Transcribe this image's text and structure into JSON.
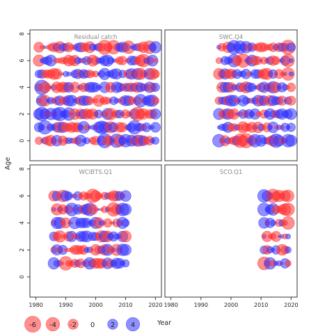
{
  "chart_data": {
    "type": "scatter",
    "subtype": "bubble-residuals",
    "xlabel": "Year",
    "ylabel": "Age",
    "xlim": [
      1978,
      2022
    ],
    "ylim": [
      -1.5,
      8.3
    ],
    "x_ticks": [
      1980,
      1990,
      2000,
      2010,
      2020
    ],
    "y_ticks": [
      0,
      2,
      4,
      6,
      8
    ],
    "colors": {
      "positive": "#3333ff",
      "negative": "#ff3333"
    },
    "legend": {
      "placement": "bottom",
      "title": "Year",
      "entries": [
        {
          "label": "-6",
          "value": -6
        },
        {
          "label": "-4",
          "value": -4
        },
        {
          "label": "-2",
          "value": -2
        },
        {
          "label": "0",
          "value": 0
        },
        {
          "label": "2",
          "value": 2
        },
        {
          "label": "4",
          "value": 4
        }
      ]
    },
    "panels": [
      {
        "title": "Residual catch",
        "years": [
          1981,
          2020
        ],
        "ages": [
          0,
          7
        ],
        "highlights": [
          {
            "year": 1982,
            "age": 4,
            "value": 4
          },
          {
            "year": 1982,
            "age": 2,
            "value": 3.5
          },
          {
            "year": 1983,
            "age": 1,
            "value": 3.5
          },
          {
            "year": 1988,
            "age": 2,
            "value": 3.5
          },
          {
            "year": 1991,
            "age": 2,
            "value": 3
          },
          {
            "year": 2003,
            "age": 0,
            "value": 4
          },
          {
            "year": 2003,
            "age": 7,
            "value": -4
          },
          {
            "year": 2007,
            "age": 0,
            "value": 3.5
          },
          {
            "year": 2010,
            "age": 0,
            "value": 3
          },
          {
            "year": 2013,
            "age": 1,
            "value": 3.5
          },
          {
            "year": 2014,
            "age": 2,
            "value": -3.5
          },
          {
            "year": 2006,
            "age": 7,
            "value": -3.5
          },
          {
            "year": 2011,
            "age": 7,
            "value": -3
          },
          {
            "year": 2018,
            "age": 7,
            "value": -3
          },
          {
            "year": 2015,
            "age": 3,
            "value": 3
          },
          {
            "year": 2016,
            "age": 6,
            "value": -3
          },
          {
            "year": 2002,
            "age": 1,
            "value": 3
          },
          {
            "year": 1996,
            "age": 1,
            "value": 2.5
          }
        ]
      },
      {
        "title": "SWC.Q4",
        "years": [
          1996,
          2020
        ],
        "ages": [
          0,
          7
        ],
        "highlights": [
          {
            "year": 2019,
            "age": 7,
            "value": -4
          },
          {
            "year": 2001,
            "age": 7,
            "value": 3.5
          },
          {
            "year": 2003,
            "age": 7,
            "value": 3
          },
          {
            "year": 2001,
            "age": 6,
            "value": 3
          },
          {
            "year": 2004,
            "age": 6,
            "value": -3.5
          },
          {
            "year": 2019,
            "age": 6,
            "value": -3
          },
          {
            "year": 2005,
            "age": 0,
            "value": -4
          },
          {
            "year": 2003,
            "age": 0,
            "value": -3.5
          },
          {
            "year": 2015,
            "age": 0,
            "value": 3.5
          },
          {
            "year": 2019,
            "age": 0,
            "value": 3
          },
          {
            "year": 1996,
            "age": 0,
            "value": 3
          },
          {
            "year": 2008,
            "age": 0,
            "value": 3
          },
          {
            "year": 2019,
            "age": 5,
            "value": -3
          },
          {
            "year": 2014,
            "age": 4,
            "value": 2.5
          }
        ]
      },
      {
        "title": "WCIBTS.Q1",
        "years": [
          1986,
          2010
        ],
        "ages": [
          1,
          6
        ],
        "highlights": [
          {
            "year": 1999,
            "age": 6,
            "value": -3.5
          },
          {
            "year": 2006,
            "age": 5,
            "value": -3.5
          },
          {
            "year": 2009,
            "age": 5,
            "value": 3
          },
          {
            "year": 1990,
            "age": 1,
            "value": -3.5
          },
          {
            "year": 1992,
            "age": 5,
            "value": 3
          },
          {
            "year": 1998,
            "age": 5,
            "value": 3
          },
          {
            "year": 1989,
            "age": 6,
            "value": -2.5
          },
          {
            "year": 1998,
            "age": 1,
            "value": 2.5
          },
          {
            "year": 2009,
            "age": 2,
            "value": 2.5
          },
          {
            "year": 1993,
            "age": 4,
            "value": 2.5
          }
        ]
      },
      {
        "title": "SCO.Q1",
        "years": [
          2011,
          2019
        ],
        "ages": [
          1,
          6
        ],
        "highlights": [
          {
            "year": 2014,
            "age": 6,
            "value": -3.5
          },
          {
            "year": 2011,
            "age": 1,
            "value": -3
          },
          {
            "year": 2011,
            "age": 6,
            "value": 3
          },
          {
            "year": 2011,
            "age": 5,
            "value": 3
          },
          {
            "year": 2019,
            "age": 4,
            "value": -3
          },
          {
            "year": 2019,
            "age": 5,
            "value": -3
          },
          {
            "year": 2019,
            "age": 6,
            "value": -2.5
          },
          {
            "year": 2013,
            "age": 1,
            "value": 2.5
          },
          {
            "year": 2014,
            "age": 5,
            "value": 2.5
          }
        ]
      }
    ]
  }
}
